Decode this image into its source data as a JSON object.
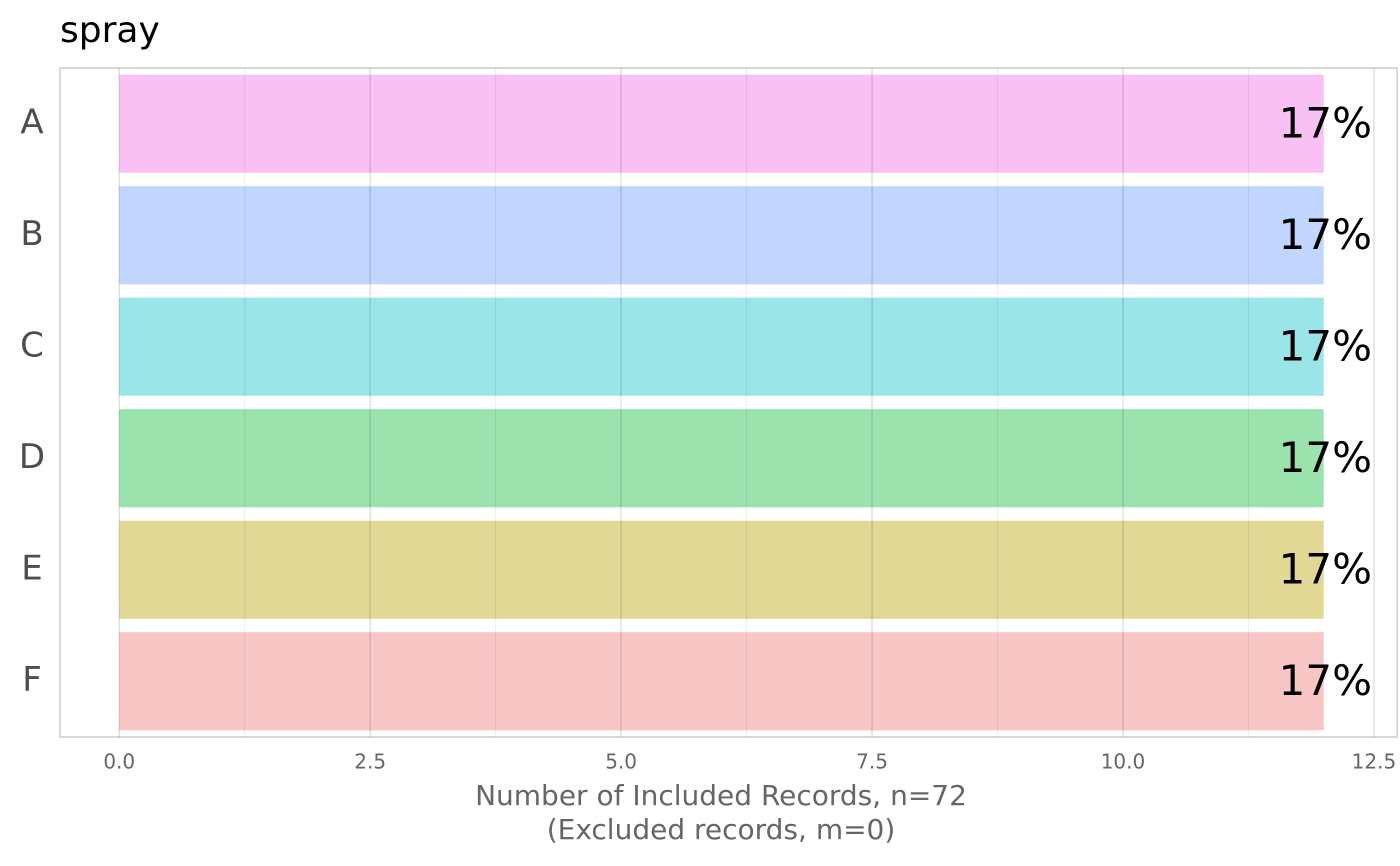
{
  "chart_data": {
    "type": "hbar",
    "title": "spray",
    "categories": [
      "A",
      "B",
      "C",
      "D",
      "E",
      "F"
    ],
    "values": [
      12,
      12,
      12,
      12,
      12,
      12
    ],
    "bar_labels": [
      "17%",
      "17%",
      "17%",
      "17%",
      "17%",
      "17%"
    ],
    "colors": [
      "#f9c0f4",
      "#c0d6fe",
      "#9ae5e8",
      "#9ae3ad",
      "#e1d896",
      "#f9c6c6"
    ],
    "xlabel": [
      "Number of Included Records, n=72",
      "(Excluded records, m=0)"
    ],
    "xlim": [
      -0.59,
      12.73
    ],
    "xticks": [
      {
        "value": 0,
        "label": "0.0"
      },
      2.5,
      {
        "value": 5,
        "label": "5.0"
      },
      7.5,
      {
        "value": 10,
        "label": "10.0"
      },
      12.5
    ],
    "minor_xticks": [
      1.25,
      3.75,
      6.25,
      8.75,
      11.25
    ],
    "grid": true
  }
}
